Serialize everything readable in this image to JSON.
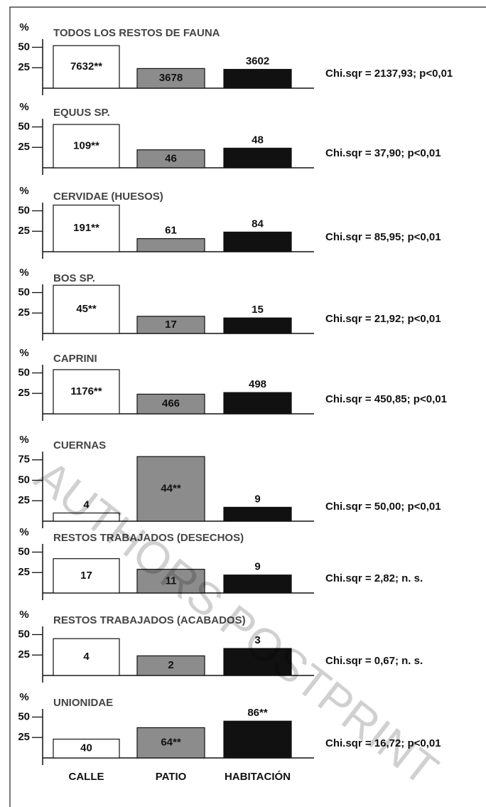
{
  "watermark": "AUTHORS POSTPRINT",
  "chart_data": [
    {
      "type": "bar",
      "title": "TODOS LOS RESTOS DE FAUNA",
      "ylabel": "%",
      "values": [
        52,
        24,
        23
      ],
      "bar_labels": [
        "7632**",
        "3678",
        "3602"
      ],
      "stat": "Chi.sqr = 2137,93; p<0,01",
      "colors": [
        "#ffffff",
        "#8c8c8c",
        "#111111"
      ],
      "ylim": [
        0,
        60
      ],
      "yticks": [
        25,
        50
      ]
    },
    {
      "type": "bar",
      "title": "EQUUS SP.",
      "ylabel": "%",
      "values": [
        53,
        22,
        24
      ],
      "bar_labels": [
        "109**",
        "46",
        "48"
      ],
      "stat": "Chi.sqr = 37,90; p<0,01",
      "colors": [
        "#ffffff",
        "#8c8c8c",
        "#111111"
      ],
      "ylim": [
        0,
        60
      ],
      "yticks": [
        25,
        50
      ]
    },
    {
      "type": "bar",
      "title": "CERVIDAE (HUESOS)",
      "ylabel": "%",
      "values": [
        57,
        16,
        24
      ],
      "bar_labels": [
        "191**",
        "61",
        "84"
      ],
      "stat": "Chi.sqr = 85,95; p<0,01",
      "colors": [
        "#ffffff",
        "#8c8c8c",
        "#111111"
      ],
      "ylim": [
        0,
        60
      ],
      "yticks": [
        25,
        50
      ]
    },
    {
      "type": "bar",
      "title": "BOS SP.",
      "ylabel": "%",
      "values": [
        59,
        21,
        19
      ],
      "bar_labels": [
        "45**",
        "17",
        "15"
      ],
      "stat": "Chi.sqr = 21,92; p<0,01",
      "colors": [
        "#ffffff",
        "#8c8c8c",
        "#111111"
      ],
      "ylim": [
        0,
        60
      ],
      "yticks": [
        25,
        50
      ]
    },
    {
      "type": "bar",
      "title": "CAPRINI",
      "ylabel": "%",
      "values": [
        54,
        24,
        26
      ],
      "bar_labels": [
        "1176**",
        "466",
        "498"
      ],
      "stat": "Chi.sqr = 450,85; p<0,01",
      "colors": [
        "#ffffff",
        "#8c8c8c",
        "#111111"
      ],
      "ylim": [
        0,
        60
      ],
      "yticks": [
        25,
        50
      ]
    },
    {
      "type": "bar",
      "title": "CUERNAS",
      "ylabel": "%",
      "values": [
        10,
        79,
        17
      ],
      "bar_labels": [
        "4",
        "44**",
        "9"
      ],
      "stat": "Chi.sqr = 50,00; p<0,01",
      "colors": [
        "#ffffff",
        "#8c8c8c",
        "#111111"
      ],
      "ylim": [
        0,
        85
      ],
      "yticks": [
        25,
        50,
        75
      ]
    },
    {
      "type": "bar",
      "title": "RESTOS TRABAJADOS (DESECHOS)",
      "ylabel": "%",
      "values": [
        42,
        29,
        22
      ],
      "bar_labels": [
        "17",
        "11",
        "9"
      ],
      "stat": "Chi.sqr = 2,82; n. s.",
      "colors": [
        "#ffffff",
        "#8c8c8c",
        "#111111"
      ],
      "ylim": [
        0,
        60
      ],
      "yticks": [
        25,
        50
      ]
    },
    {
      "type": "bar",
      "title": "RESTOS TRABAJADOS (ACABADOS)",
      "ylabel": "%",
      "values": [
        45,
        24,
        33
      ],
      "bar_labels": [
        "4",
        "2",
        "3"
      ],
      "stat": "Chi.sqr = 0,67; n. s.",
      "colors": [
        "#ffffff",
        "#8c8c8c",
        "#111111"
      ],
      "ylim": [
        0,
        60
      ],
      "yticks": [
        25,
        50
      ]
    },
    {
      "type": "bar",
      "title": "UNIONIDAE",
      "ylabel": "%",
      "values": [
        23,
        37,
        45
      ],
      "bar_labels": [
        "40",
        "64**",
        "86**"
      ],
      "stat": "Chi.sqr = 16,72; p<0,01",
      "colors": [
        "#ffffff",
        "#8c8c8c",
        "#111111"
      ],
      "ylim": [
        0,
        60
      ],
      "yticks": [
        25,
        50
      ],
      "categories": [
        "CALLE",
        "PATIO",
        "HABITACIÓN"
      ]
    }
  ]
}
